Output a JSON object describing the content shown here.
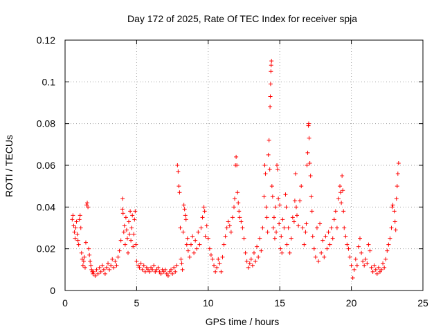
{
  "chart_data": {
    "type": "scatter",
    "title": "Day 172 of 2025, Rate Of TEC Index for receiver spja",
    "xlabel": "GPS time / hours",
    "ylabel": "ROTI / TECUs",
    "xlim": [
      0,
      25
    ],
    "ylim": [
      0,
      0.12
    ],
    "grid": true,
    "marker": "+",
    "marker_color": "#ff0000",
    "x_ticks": [
      0,
      5,
      10,
      15,
      20,
      25
    ],
    "x_tick_labels": [
      "0",
      "5",
      "10",
      "15",
      "20",
      "25"
    ],
    "y_ticks": [
      0,
      0.02,
      0.04,
      0.06,
      0.08,
      0.1,
      0.12
    ],
    "y_tick_labels": [
      "0",
      "0.02",
      "0.04",
      "0.06",
      "0.08",
      "0.1",
      "0.12"
    ],
    "series": [
      {
        "name": "ROTI",
        "points": [
          [
            0.5,
            0.034
          ],
          [
            0.55,
            0.036
          ],
          [
            0.6,
            0.031
          ],
          [
            0.65,
            0.028
          ],
          [
            0.7,
            0.025
          ],
          [
            0.75,
            0.03
          ],
          [
            0.8,
            0.033
          ],
          [
            0.85,
            0.027
          ],
          [
            0.9,
            0.024
          ],
          [
            0.95,
            0.022
          ],
          [
            1.0,
            0.034
          ],
          [
            1.05,
            0.036
          ],
          [
            1.1,
            0.03
          ],
          [
            1.15,
            0.018
          ],
          [
            1.2,
            0.015
          ],
          [
            1.25,
            0.012
          ],
          [
            1.3,
            0.014
          ],
          [
            1.35,
            0.016
          ],
          [
            1.4,
            0.011
          ],
          [
            1.45,
            0.023
          ],
          [
            1.5,
            0.041
          ],
          [
            1.55,
            0.042
          ],
          [
            1.6,
            0.04
          ],
          [
            1.65,
            0.02
          ],
          [
            1.7,
            0.017
          ],
          [
            1.75,
            0.014
          ],
          [
            1.8,
            0.012
          ],
          [
            1.85,
            0.01
          ],
          [
            1.9,
            0.009
          ],
          [
            1.95,
            0.008
          ],
          [
            2.0,
            0.009
          ],
          [
            2.1,
            0.007
          ],
          [
            2.2,
            0.01
          ],
          [
            2.3,
            0.008
          ],
          [
            2.4,
            0.011
          ],
          [
            2.5,
            0.009
          ],
          [
            2.6,
            0.012
          ],
          [
            2.7,
            0.01
          ],
          [
            2.8,
            0.008
          ],
          [
            2.9,
            0.011
          ],
          [
            3.0,
            0.013
          ],
          [
            3.1,
            0.01
          ],
          [
            3.2,
            0.012
          ],
          [
            3.3,
            0.015
          ],
          [
            3.4,
            0.011
          ],
          [
            3.5,
            0.014
          ],
          [
            3.6,
            0.012
          ],
          [
            3.7,
            0.016
          ],
          [
            3.8,
            0.019
          ],
          [
            3.9,
            0.024
          ],
          [
            4.0,
            0.039
          ],
          [
            4.02,
            0.044
          ],
          [
            4.05,
            0.037
          ],
          [
            4.1,
            0.028
          ],
          [
            4.15,
            0.031
          ],
          [
            4.2,
            0.022
          ],
          [
            4.25,
            0.035
          ],
          [
            4.3,
            0.029
          ],
          [
            4.35,
            0.025
          ],
          [
            4.4,
            0.018
          ],
          [
            4.45,
            0.033
          ],
          [
            4.5,
            0.027
          ],
          [
            4.55,
            0.038
          ],
          [
            4.6,
            0.024
          ],
          [
            4.65,
            0.03
          ],
          [
            4.7,
            0.036
          ],
          [
            4.75,
            0.021
          ],
          [
            4.8,
            0.027
          ],
          [
            4.85,
            0.034
          ],
          [
            4.9,
            0.038
          ],
          [
            4.95,
            0.022
          ],
          [
            5.0,
            0.014
          ],
          [
            5.1,
            0.012
          ],
          [
            5.2,
            0.011
          ],
          [
            5.3,
            0.013
          ],
          [
            5.4,
            0.01
          ],
          [
            5.5,
            0.012
          ],
          [
            5.6,
            0.009
          ],
          [
            5.7,
            0.011
          ],
          [
            5.8,
            0.01
          ],
          [
            5.9,
            0.009
          ],
          [
            6.0,
            0.011
          ],
          [
            6.1,
            0.01
          ],
          [
            6.2,
            0.012
          ],
          [
            6.3,
            0.009
          ],
          [
            6.4,
            0.01
          ],
          [
            6.5,
            0.011
          ],
          [
            6.6,
            0.009
          ],
          [
            6.7,
            0.008
          ],
          [
            6.8,
            0.01
          ],
          [
            6.9,
            0.009
          ],
          [
            7.0,
            0.01
          ],
          [
            7.1,
            0.008
          ],
          [
            7.2,
            0.007
          ],
          [
            7.3,
            0.009
          ],
          [
            7.4,
            0.01
          ],
          [
            7.5,
            0.008
          ],
          [
            7.6,
            0.011
          ],
          [
            7.7,
            0.009
          ],
          [
            7.8,
            0.012
          ],
          [
            7.85,
            0.06
          ],
          [
            7.9,
            0.057
          ],
          [
            7.95,
            0.05
          ],
          [
            8.0,
            0.047
          ],
          [
            8.05,
            0.03
          ],
          [
            8.1,
            0.015
          ],
          [
            8.15,
            0.013
          ],
          [
            8.2,
            0.01
          ],
          [
            8.25,
            0.028
          ],
          [
            8.3,
            0.041
          ],
          [
            8.35,
            0.039
          ],
          [
            8.4,
            0.036
          ],
          [
            8.45,
            0.034
          ],
          [
            8.5,
            0.022
          ],
          [
            8.55,
            0.025
          ],
          [
            8.6,
            0.019
          ],
          [
            8.7,
            0.016
          ],
          [
            8.8,
            0.022
          ],
          [
            8.9,
            0.026
          ],
          [
            9.0,
            0.018
          ],
          [
            9.1,
            0.024
          ],
          [
            9.2,
            0.02
          ],
          [
            9.3,
            0.028
          ],
          [
            9.4,
            0.022
          ],
          [
            9.5,
            0.03
          ],
          [
            9.6,
            0.035
          ],
          [
            9.7,
            0.04
          ],
          [
            9.75,
            0.038
          ],
          [
            9.8,
            0.026
          ],
          [
            9.9,
            0.031
          ],
          [
            10.0,
            0.025
          ],
          [
            10.1,
            0.02
          ],
          [
            10.2,
            0.017
          ],
          [
            10.3,
            0.015
          ],
          [
            10.4,
            0.012
          ],
          [
            10.5,
            0.009
          ],
          [
            10.6,
            0.011
          ],
          [
            10.7,
            0.015
          ],
          [
            10.8,
            0.013
          ],
          [
            10.9,
            0.009
          ],
          [
            11.0,
            0.016
          ],
          [
            11.1,
            0.022
          ],
          [
            11.2,
            0.026
          ],
          [
            11.3,
            0.03
          ],
          [
            11.4,
            0.033
          ],
          [
            11.5,
            0.031
          ],
          [
            11.6,
            0.028
          ],
          [
            11.7,
            0.035
          ],
          [
            11.8,
            0.04
          ],
          [
            11.85,
            0.044
          ],
          [
            11.9,
            0.06
          ],
          [
            11.95,
            0.064
          ],
          [
            12.0,
            0.06
          ],
          [
            12.05,
            0.047
          ],
          [
            12.1,
            0.042
          ],
          [
            12.15,
            0.038
          ],
          [
            12.2,
            0.035
          ],
          [
            12.3,
            0.033
          ],
          [
            12.4,
            0.03
          ],
          [
            12.5,
            0.025
          ],
          [
            12.6,
            0.018
          ],
          [
            12.7,
            0.014
          ],
          [
            12.8,
            0.011
          ],
          [
            12.9,
            0.013
          ],
          [
            13.0,
            0.015
          ],
          [
            13.1,
            0.012
          ],
          [
            13.2,
            0.018
          ],
          [
            13.3,
            0.014
          ],
          [
            13.4,
            0.021
          ],
          [
            13.5,
            0.016
          ],
          [
            13.6,
            0.025
          ],
          [
            13.7,
            0.019
          ],
          [
            13.8,
            0.03
          ],
          [
            13.9,
            0.045
          ],
          [
            13.95,
            0.06
          ],
          [
            14.0,
            0.056
          ],
          [
            14.05,
            0.04
          ],
          [
            14.1,
            0.035
          ],
          [
            14.15,
            0.028
          ],
          [
            14.2,
            0.065
          ],
          [
            14.25,
            0.072
          ],
          [
            14.3,
            0.058
          ],
          [
            14.32,
            0.088
          ],
          [
            14.34,
            0.093
          ],
          [
            14.36,
            0.099
          ],
          [
            14.38,
            0.105
          ],
          [
            14.4,
            0.108
          ],
          [
            14.42,
            0.11
          ],
          [
            14.45,
            0.05
          ],
          [
            14.5,
            0.045
          ],
          [
            14.55,
            0.03
          ],
          [
            14.6,
            0.035
          ],
          [
            14.65,
            0.025
          ],
          [
            14.7,
            0.04
          ],
          [
            14.75,
            0.028
          ],
          [
            14.8,
            0.06
          ],
          [
            14.85,
            0.058
          ],
          [
            14.9,
            0.044
          ],
          [
            14.95,
            0.032
          ],
          [
            15.0,
            0.041
          ],
          [
            15.05,
            0.02
          ],
          [
            15.1,
            0.026
          ],
          [
            15.15,
            0.018
          ],
          [
            15.2,
            0.034
          ],
          [
            15.3,
            0.03
          ],
          [
            15.4,
            0.046
          ],
          [
            15.45,
            0.04
          ],
          [
            15.5,
            0.022
          ],
          [
            15.6,
            0.03
          ],
          [
            15.7,
            0.018
          ],
          [
            15.8,
            0.025
          ],
          [
            15.9,
            0.035
          ],
          [
            16.0,
            0.033
          ],
          [
            16.05,
            0.043
          ],
          [
            16.1,
            0.056
          ],
          [
            16.15,
            0.04
          ],
          [
            16.2,
            0.036
          ],
          [
            16.3,
            0.031
          ],
          [
            16.4,
            0.043
          ],
          [
            16.5,
            0.05
          ],
          [
            16.6,
            0.03
          ],
          [
            16.7,
            0.022
          ],
          [
            16.8,
            0.028
          ],
          [
            16.85,
            0.032
          ],
          [
            16.9,
            0.06
          ],
          [
            16.95,
            0.066
          ],
          [
            17.0,
            0.079
          ],
          [
            17.02,
            0.08
          ],
          [
            17.05,
            0.073
          ],
          [
            17.1,
            0.061
          ],
          [
            17.15,
            0.055
          ],
          [
            17.2,
            0.045
          ],
          [
            17.25,
            0.038
          ],
          [
            17.3,
            0.026
          ],
          [
            17.4,
            0.02
          ],
          [
            17.5,
            0.016
          ],
          [
            17.6,
            0.03
          ],
          [
            17.7,
            0.014
          ],
          [
            17.8,
            0.032
          ],
          [
            17.9,
            0.018
          ],
          [
            18.0,
            0.024
          ],
          [
            18.1,
            0.016
          ],
          [
            18.2,
            0.026
          ],
          [
            18.3,
            0.02
          ],
          [
            18.4,
            0.028
          ],
          [
            18.5,
            0.022
          ],
          [
            18.6,
            0.03
          ],
          [
            18.7,
            0.025
          ],
          [
            18.8,
            0.034
          ],
          [
            18.9,
            0.038
          ],
          [
            19.0,
            0.03
          ],
          [
            19.1,
            0.044
          ],
          [
            19.2,
            0.05
          ],
          [
            19.25,
            0.047
          ],
          [
            19.3,
            0.042
          ],
          [
            19.35,
            0.055
          ],
          [
            19.4,
            0.048
          ],
          [
            19.45,
            0.038
          ],
          [
            19.5,
            0.03
          ],
          [
            19.6,
            0.026
          ],
          [
            19.7,
            0.022
          ],
          [
            19.8,
            0.02
          ],
          [
            19.9,
            0.016
          ],
          [
            20.0,
            0.012
          ],
          [
            20.1,
            0.006
          ],
          [
            20.2,
            0.01
          ],
          [
            20.3,
            0.015
          ],
          [
            20.4,
            0.012
          ],
          [
            20.5,
            0.021
          ],
          [
            20.6,
            0.025
          ],
          [
            20.7,
            0.018
          ],
          [
            20.8,
            0.014
          ],
          [
            20.9,
            0.012
          ],
          [
            21.0,
            0.015
          ],
          [
            21.1,
            0.013
          ],
          [
            21.2,
            0.022
          ],
          [
            21.3,
            0.019
          ],
          [
            21.4,
            0.011
          ],
          [
            21.5,
            0.009
          ],
          [
            21.6,
            0.012
          ],
          [
            21.7,
            0.01
          ],
          [
            21.8,
            0.008
          ],
          [
            21.9,
            0.011
          ],
          [
            22.0,
            0.009
          ],
          [
            22.1,
            0.01
          ],
          [
            22.2,
            0.013
          ],
          [
            22.3,
            0.011
          ],
          [
            22.4,
            0.015
          ],
          [
            22.5,
            0.019
          ],
          [
            22.6,
            0.022
          ],
          [
            22.7,
            0.025
          ],
          [
            22.8,
            0.03
          ],
          [
            22.85,
            0.04
          ],
          [
            22.9,
            0.041
          ],
          [
            23.0,
            0.038
          ],
          [
            23.05,
            0.033
          ],
          [
            23.1,
            0.029
          ],
          [
            23.15,
            0.044
          ],
          [
            23.2,
            0.05
          ],
          [
            23.25,
            0.056
          ],
          [
            23.3,
            0.061
          ]
        ]
      }
    ]
  }
}
